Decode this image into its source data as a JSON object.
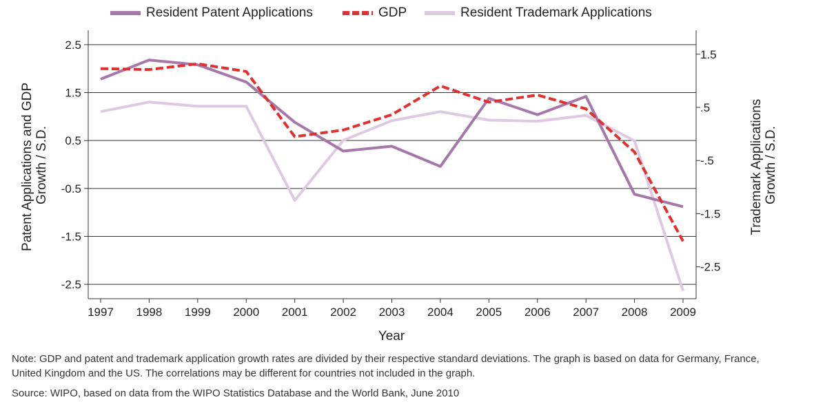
{
  "chart_data": {
    "type": "line",
    "xlabel": "Year",
    "ylabel_left": [
      "Patent Applications and GDP",
      "Growth / S.D."
    ],
    "ylabel_right": [
      "Trademark Applications",
      "Growth / S.D."
    ],
    "x": [
      "1997",
      "1998",
      "1999",
      "2000",
      "2001",
      "2002",
      "2003",
      "2004",
      "2005",
      "2006",
      "2007",
      "2008",
      "2009"
    ],
    "left_ticks": [
      "2.5",
      "1.5",
      "0.5",
      "-0.5",
      "-1.5",
      "-2.5"
    ],
    "left_tick_values": [
      2.5,
      1.5,
      0.5,
      -0.5,
      -1.5,
      -2.5
    ],
    "right_ticks": [
      "1.5",
      ".5",
      "-.5",
      "-1.5",
      "-2.5"
    ],
    "right_tick_values": [
      1.5,
      0.5,
      -0.5,
      -1.5,
      -2.5
    ],
    "ylim_left": [
      -2.8,
      2.8
    ],
    "ylim_right": [
      -3.1,
      1.95
    ],
    "grid": "horizontal",
    "legend_position": "top",
    "series": [
      {
        "name": "Resident Patent Applications",
        "axis": "left",
        "color": "#a678aa",
        "style": "solid",
        "values": [
          1.78,
          2.18,
          2.08,
          1.72,
          0.88,
          0.28,
          0.38,
          -0.04,
          1.38,
          1.04,
          1.42,
          -0.62,
          -0.88
        ]
      },
      {
        "name": "GDP",
        "axis": "left",
        "color": "#e03030",
        "style": "dashed",
        "values": [
          2.0,
          1.98,
          2.1,
          1.94,
          0.58,
          0.72,
          1.04,
          1.64,
          1.3,
          1.45,
          1.16,
          0.26,
          -1.6
        ]
      },
      {
        "name": "Resident Trademark Applications",
        "axis": "right",
        "color": "#dccbe0",
        "style": "solid",
        "values": [
          0.42,
          0.6,
          0.52,
          0.52,
          -1.25,
          -0.12,
          0.25,
          0.42,
          0.26,
          0.24,
          0.35,
          -0.13,
          -2.95
        ]
      }
    ]
  },
  "notes": [
    "Note: GDP and patent and trademark application growth rates are divided by their respective standard deviations. The graph is based on data for Germany, France,",
    "United Kingdom and the US. The correlations may be different for countries not included in the graph."
  ],
  "source": "Source: WIPO, based on data from the WIPO Statistics Database and the World Bank, June 2010"
}
